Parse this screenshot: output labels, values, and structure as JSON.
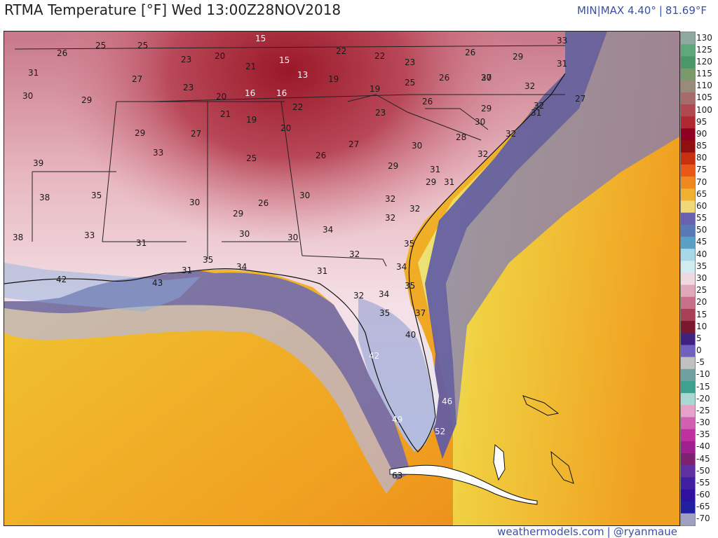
{
  "header": {
    "title": "RTMA Temperature [°F]  Wed 13:00Z28NOV2018",
    "min_label": "MIN",
    "max_label": "MAX 4.40°",
    "max_value": "81.69°F"
  },
  "footer": {
    "site": "weathermodels.com",
    "handle": "@ryanmaue"
  },
  "colorbar": {
    "labels": [
      "130",
      "125",
      "120",
      "115",
      "110",
      "105",
      "100",
      "95",
      "90",
      "85",
      "80",
      "75",
      "70",
      "65",
      "60",
      "55",
      "50",
      "45",
      "40",
      "35",
      "30",
      "25",
      "20",
      "15",
      "10",
      "5",
      "0",
      "-5",
      "-10",
      "-15",
      "-20",
      "-25",
      "-30",
      "-35",
      "-40",
      "-45",
      "-50",
      "-55",
      "-60",
      "-65",
      "-70"
    ],
    "colors": [
      "#8fa8a0",
      "#5fa87a",
      "#4a9868",
      "#7a9a6a",
      "#9a8a7a",
      "#a86a6a",
      "#b04850",
      "#b02830",
      "#900020",
      "#901010",
      "#c83010",
      "#e85818",
      "#f08820",
      "#f0b030",
      "#f0d878",
      "#6860b0",
      "#5878b8",
      "#58a0c8",
      "#a8d8e8",
      "#d0ecf0",
      "#f0d8e0",
      "#e0a8b8",
      "#c87088",
      "#a84058",
      "#7a1830",
      "#402080",
      "#7060c0",
      "#c0c0c0",
      "#70a0a0",
      "#40a090",
      "#a8d8d0",
      "#e8a0c8",
      "#d060b0",
      "#c030a0",
      "#a02090",
      "#802070",
      "#6030a0",
      "#4020a0",
      "#3010a0",
      "#2020a0",
      "#a0a0c0"
    ]
  },
  "stations": [
    {
      "t": "25",
      "c": "dark"
    },
    {
      "t": "25",
      "c": "dark"
    },
    {
      "t": "15",
      "c": "light"
    },
    {
      "t": "26",
      "c": "dark"
    },
    {
      "t": "23",
      "c": "dark"
    },
    {
      "t": "20",
      "c": "dark"
    },
    {
      "t": "15",
      "c": "light"
    },
    {
      "t": "22",
      "c": "dark"
    },
    {
      "t": "22",
      "c": "dark"
    },
    {
      "t": "26",
      "c": "dark"
    },
    {
      "t": "29",
      "c": "dark"
    },
    {
      "t": "33",
      "c": "dark"
    },
    {
      "t": "31",
      "c": "dark"
    },
    {
      "t": "27",
      "c": "dark"
    },
    {
      "t": "21",
      "c": "dark"
    },
    {
      "t": "13",
      "c": "light"
    },
    {
      "t": "19",
      "c": "dark"
    },
    {
      "t": "23",
      "c": "dark"
    },
    {
      "t": "26",
      "c": "dark"
    },
    {
      "t": "30",
      "c": "dark"
    },
    {
      "t": "31",
      "c": "dark"
    },
    {
      "t": "30",
      "c": "dark"
    },
    {
      "t": "29",
      "c": "dark"
    },
    {
      "t": "23",
      "c": "dark"
    },
    {
      "t": "16",
      "c": "light"
    },
    {
      "t": "16",
      "c": "light"
    },
    {
      "t": "20",
      "c": "dark"
    },
    {
      "t": "19",
      "c": "dark"
    },
    {
      "t": "25",
      "c": "dark"
    },
    {
      "t": "27",
      "c": "dark"
    },
    {
      "t": "26",
      "c": "dark"
    },
    {
      "t": "29",
      "c": "dark"
    },
    {
      "t": "32",
      "c": "dark"
    },
    {
      "t": "32",
      "c": "dark"
    },
    {
      "t": "27",
      "c": "dark"
    },
    {
      "t": "21",
      "c": "dark"
    },
    {
      "t": "19",
      "c": "dark"
    },
    {
      "t": "22",
      "c": "dark"
    },
    {
      "t": "23",
      "c": "dark"
    },
    {
      "t": "30",
      "c": "dark"
    },
    {
      "t": "31",
      "c": "dark"
    },
    {
      "t": "29",
      "c": "dark"
    },
    {
      "t": "27",
      "c": "dark"
    },
    {
      "t": "20",
      "c": "dark"
    },
    {
      "t": "28",
      "c": "dark"
    },
    {
      "t": "32",
      "c": "dark"
    },
    {
      "t": "33",
      "c": "dark"
    },
    {
      "t": "26",
      "c": "dark"
    },
    {
      "t": "27",
      "c": "dark"
    },
    {
      "t": "30",
      "c": "dark"
    },
    {
      "t": "32",
      "c": "dark"
    },
    {
      "t": "39",
      "c": "dark"
    },
    {
      "t": "25",
      "c": "dark"
    },
    {
      "t": "29",
      "c": "dark"
    },
    {
      "t": "31",
      "c": "dark"
    },
    {
      "t": "29",
      "c": "dark"
    },
    {
      "t": "31",
      "c": "dark"
    },
    {
      "t": "38",
      "c": "dark"
    },
    {
      "t": "35",
      "c": "dark"
    },
    {
      "t": "32",
      "c": "dark"
    },
    {
      "t": "30",
      "c": "dark"
    },
    {
      "t": "26",
      "c": "dark"
    },
    {
      "t": "29",
      "c": "dark"
    },
    {
      "t": "30",
      "c": "dark"
    },
    {
      "t": "32",
      "c": "dark"
    },
    {
      "t": "32",
      "c": "dark"
    },
    {
      "t": "38",
      "c": "dark"
    },
    {
      "t": "33",
      "c": "dark"
    },
    {
      "t": "30",
      "c": "dark"
    },
    {
      "t": "30",
      "c": "dark"
    },
    {
      "t": "34",
      "c": "dark"
    },
    {
      "t": "31",
      "c": "dark"
    },
    {
      "t": "35",
      "c": "dark"
    },
    {
      "t": "32",
      "c": "dark"
    },
    {
      "t": "34",
      "c": "dark"
    },
    {
      "t": "31",
      "c": "dark"
    },
    {
      "t": "35",
      "c": "dark"
    },
    {
      "t": "34",
      "c": "dark"
    },
    {
      "t": "42",
      "c": "dark"
    },
    {
      "t": "43",
      "c": "dark"
    },
    {
      "t": "31",
      "c": "dark"
    },
    {
      "t": "35",
      "c": "dark"
    },
    {
      "t": "32",
      "c": "dark"
    },
    {
      "t": "34",
      "c": "dark"
    },
    {
      "t": "35",
      "c": "dark"
    },
    {
      "t": "37",
      "c": "dark"
    },
    {
      "t": "40",
      "c": "dark"
    },
    {
      "t": "42",
      "c": "light"
    },
    {
      "t": "46",
      "c": "light"
    },
    {
      "t": "49",
      "c": "light"
    },
    {
      "t": "52",
      "c": "light"
    },
    {
      "t": "63",
      "c": "dark"
    }
  ]
}
